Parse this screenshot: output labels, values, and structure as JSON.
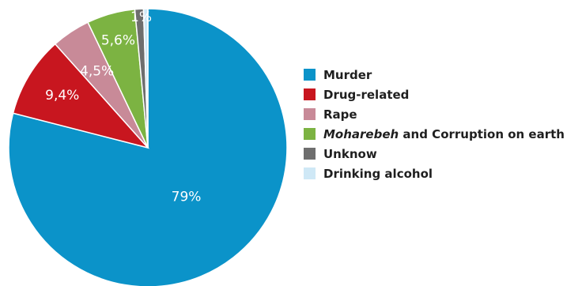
{
  "chart_data": {
    "type": "pie",
    "title": "",
    "slices": [
      {
        "label": "Murder",
        "value": 79,
        "value_label": "79%",
        "color": "#0b93c9"
      },
      {
        "label": "Drug-related",
        "value": 9.4,
        "value_label": "9,4%",
        "color": "#c8161f"
      },
      {
        "label": "Rape",
        "value": 4.5,
        "value_label": "4,5%",
        "color": "#c88a98"
      },
      {
        "label_em": "Moharebeh",
        "label_rest": " and Corruption on earth",
        "value": 5.6,
        "value_label": "5,6%",
        "color": "#7cb342"
      },
      {
        "label": "Unknow",
        "value": 1,
        "value_label": "1%",
        "color": "#6e6e6e"
      },
      {
        "label": "Drinking alcohol",
        "value": 0.5,
        "value_label": "",
        "color": "#cfe8f6"
      }
    ],
    "legend_position": "right"
  }
}
